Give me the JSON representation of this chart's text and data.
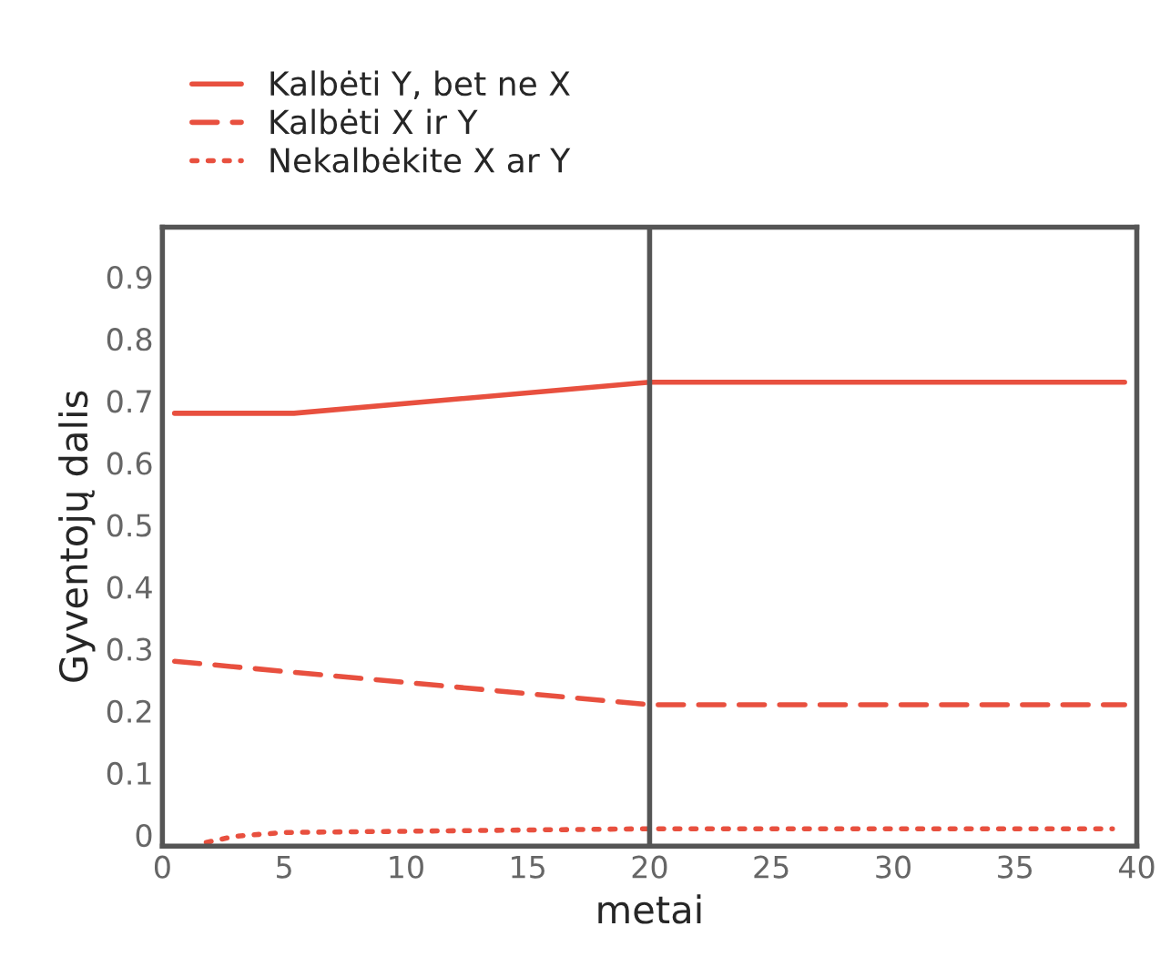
{
  "chart_data": {
    "type": "line",
    "xlabel": "metai",
    "ylabel": "Gyventojų dalis",
    "xlim": [
      0,
      40
    ],
    "ylim": [
      -0.018,
      0.98
    ],
    "xticks": [
      0,
      5,
      10,
      15,
      20,
      25,
      30,
      35,
      40
    ],
    "yticks": [
      0,
      0.1,
      0.2,
      0.3,
      0.4,
      0.5,
      0.6,
      0.7,
      0.8,
      0.9
    ],
    "series": [
      {
        "name": "Kalbėti Y, bet ne X",
        "color": "#e8503f",
        "line_style": "solid",
        "x": [
          0.5,
          5.4,
          20,
          39.5
        ],
        "values": [
          0.68,
          0.68,
          0.73,
          0.73
        ]
      },
      {
        "name": "Kalbėti X ir Y",
        "color": "#e8503f",
        "line_style": "dashed",
        "x": [
          0.5,
          20,
          39.5
        ],
        "values": [
          0.28,
          0.21,
          0.21
        ]
      },
      {
        "name": "Nekalbėkite X ar Y",
        "color": "#e8503f",
        "line_style": "dotted",
        "x": [
          1.8,
          3,
          5,
          10,
          20,
          39
        ],
        "values": [
          -0.012,
          -0.002,
          0.004,
          0.006,
          0.01,
          0.01
        ]
      }
    ],
    "ref_lines": [
      {
        "axis": "x",
        "value": 20,
        "color": "#555555",
        "line_style": "solid"
      }
    ],
    "grid": false,
    "legend": "top left"
  }
}
